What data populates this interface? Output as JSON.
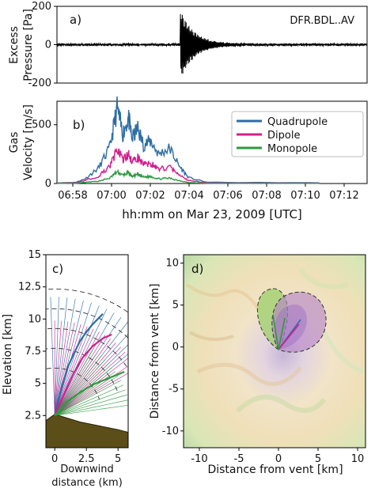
{
  "chart_data": [
    {
      "panel": "a",
      "type": "line",
      "panel_label": "a)",
      "station_label": "DFR.BDL..AV",
      "ylabel": "Excess Pressure [Pa]",
      "ylabel_lines": [
        "Excess",
        "Pressure [Pa]"
      ],
      "ylim": [
        -200,
        200
      ],
      "yticks": [
        -200,
        0,
        200
      ],
      "xlim_minutes": [
        -2,
        14.5
      ],
      "series": [
        {
          "values_description": "excess pressure waveform, onset ~07:02:30, peak ~180 Pa / min ~-130 Pa",
          "color": "#000000"
        }
      ]
    },
    {
      "panel": "b",
      "type": "line",
      "panel_label": "b)",
      "ylabel": "Gas Velocity [m/s]",
      "ylabel_lines": [
        "Gas",
        "Velocity [m/s]"
      ],
      "ylim": [
        0,
        700
      ],
      "yticks": [
        0,
        500
      ],
      "xlabel": "hh:mm on Mar 23, 2009 [UTC]",
      "xticks": [
        "06:58",
        "07:00",
        "07:02",
        "07:04",
        "07:06",
        "07:08",
        "07:10",
        "07:12"
      ],
      "legend_placement": "top-right",
      "series": [
        {
          "name": "Quadrupole",
          "color": "#2e6da4",
          "x": [
            0,
            1,
            1.5,
            2.2,
            2.8,
            3.2,
            3.5,
            3.8,
            4.0,
            4.3,
            4.6,
            5.0,
            5.4,
            6.0,
            6.5,
            7.0,
            8.0,
            14.5
          ],
          "y": [
            5,
            10,
            40,
            130,
            300,
            640,
            420,
            560,
            380,
            470,
            330,
            360,
            250,
            300,
            150,
            50,
            10,
            5
          ]
        },
        {
          "name": "Dipole",
          "color": "#d0208e",
          "x": [
            0,
            1,
            2.2,
            2.8,
            3.2,
            3.5,
            3.8,
            4.0,
            4.3,
            4.6,
            5.0,
            5.4,
            6.0,
            6.5,
            7.0,
            8.0,
            14.5
          ],
          "y": [
            3,
            6,
            60,
            140,
            290,
            200,
            250,
            180,
            220,
            160,
            170,
            120,
            140,
            70,
            25,
            5,
            3
          ]
        },
        {
          "name": "Monopole",
          "color": "#2e9a3e",
          "x": [
            0,
            1,
            2.2,
            2.8,
            3.2,
            3.5,
            3.8,
            4.0,
            4.3,
            4.6,
            5.0,
            5.4,
            6.0,
            6.5,
            7.0,
            8.0,
            14.5
          ],
          "y": [
            1,
            2,
            20,
            45,
            100,
            70,
            90,
            60,
            75,
            55,
            60,
            40,
            45,
            25,
            8,
            2,
            1
          ]
        }
      ]
    },
    {
      "panel": "c",
      "type": "line",
      "panel_label": "c)",
      "xlabel": "Downwind distance (km)",
      "xlabel_lines": [
        "Downwind",
        "distance (km)"
      ],
      "ylabel": "Elevation [km]",
      "xlim": [
        -0.7,
        5.8
      ],
      "ylim": [
        0,
        15
      ],
      "xticks": [
        0,
        2.5,
        5
      ],
      "yticks": [
        2.5,
        5,
        7.5,
        10,
        12.5,
        15
      ],
      "series": [
        {
          "name": "Quadrupole",
          "color": "#2e6da4",
          "x": [
            0,
            0.5,
            1.0,
            1.5,
            2.0,
            2.5,
            3.0,
            3.5,
            3.8
          ],
          "y": [
            2.5,
            4.5,
            6.2,
            7.3,
            8.3,
            9.0,
            9.6,
            10.1,
            10.4
          ]
        },
        {
          "name": "Dipole",
          "color": "#d0208e",
          "x": [
            0,
            0.8,
            1.5,
            2.2,
            3.0,
            3.8,
            4.5
          ],
          "y": [
            2.5,
            4.3,
            5.8,
            7.0,
            7.9,
            8.5,
            8.8
          ]
        },
        {
          "name": "Monopole",
          "color": "#2e9a3e",
          "x": [
            0,
            1.0,
            2.0,
            3.0,
            4.0,
            5.0,
            5.5
          ],
          "y": [
            2.5,
            3.6,
            4.3,
            4.9,
            5.3,
            5.7,
            5.9
          ]
        }
      ],
      "terrain": {
        "x": [
          -0.7,
          0,
          1,
          2,
          3,
          4,
          5,
          5.8
        ],
        "y": [
          2.1,
          2.6,
          2.3,
          2.0,
          1.8,
          1.6,
          1.4,
          1.2
        ]
      }
    },
    {
      "panel": "d",
      "type": "scatter",
      "panel_label": "d)",
      "xlabel": "Distance from vent [km]",
      "ylabel": "Distance from vent [km]",
      "xlim": [
        -12,
        11
      ],
      "ylim": [
        -12,
        11
      ],
      "xticks": [
        -10,
        -5,
        0,
        5,
        10
      ],
      "yticks": [
        -10,
        -5,
        0,
        5,
        10
      ],
      "background": "shaded-relief topography map"
    }
  ]
}
